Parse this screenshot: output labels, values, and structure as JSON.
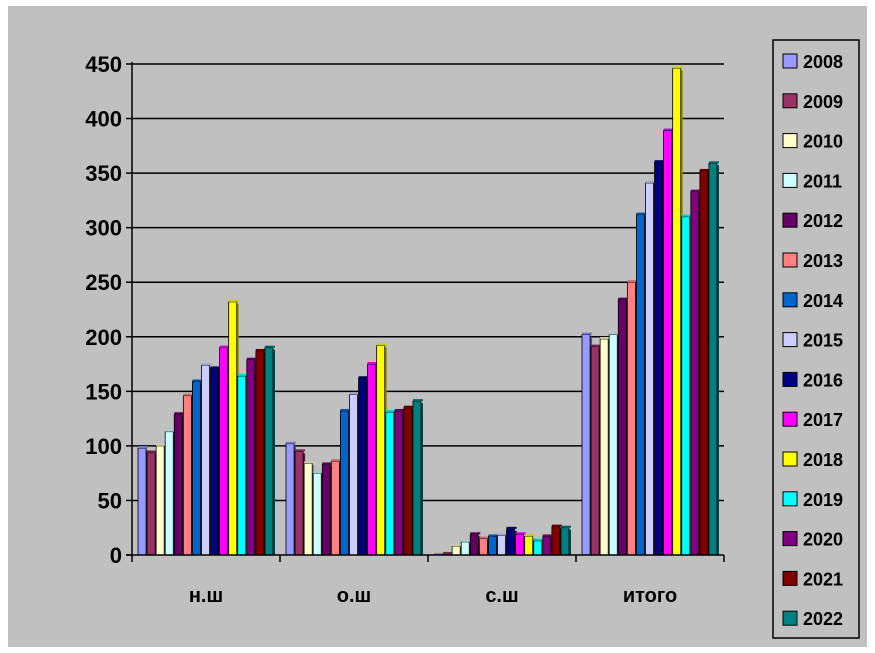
{
  "chart_data": {
    "type": "bar",
    "categories": [
      "н.ш",
      "о.ш",
      "с.ш",
      "итого"
    ],
    "series": [
      {
        "name": "2008",
        "color": "#9999ff",
        "values": [
          98,
          102,
          0,
          202
        ]
      },
      {
        "name": "2009",
        "color": "#993366",
        "values": [
          94,
          95,
          1,
          191
        ]
      },
      {
        "name": "2010",
        "color": "#ffffcc",
        "values": [
          100,
          84,
          8,
          198
        ]
      },
      {
        "name": "2011",
        "color": "#ccffff",
        "values": [
          113,
          75,
          12,
          202
        ]
      },
      {
        "name": "2012",
        "color": "#660066",
        "values": [
          129,
          83,
          19,
          234
        ]
      },
      {
        "name": "2013",
        "color": "#ff8080",
        "values": [
          146,
          86,
          15,
          250
        ]
      },
      {
        "name": "2014",
        "color": "#0066cc",
        "values": [
          159,
          132,
          17,
          312
        ]
      },
      {
        "name": "2015",
        "color": "#ccccff",
        "values": [
          174,
          147,
          18,
          341
        ]
      },
      {
        "name": "2016",
        "color": "#000080",
        "values": [
          171,
          162,
          24,
          360
        ]
      },
      {
        "name": "2017",
        "color": "#ff00ff",
        "values": [
          190,
          175,
          19,
          389
        ]
      },
      {
        "name": "2018",
        "color": "#ffff00",
        "values": [
          232,
          192,
          17,
          446
        ]
      },
      {
        "name": "2019",
        "color": "#00ffff",
        "values": [
          164,
          131,
          13,
          310
        ]
      },
      {
        "name": "2020",
        "color": "#800080",
        "values": [
          179,
          132,
          17,
          333
        ]
      },
      {
        "name": "2021",
        "color": "#800000",
        "values": [
          187,
          135,
          26,
          352
        ]
      },
      {
        "name": "2022",
        "color": "#008080",
        "values": [
          190,
          141,
          25,
          359
        ]
      }
    ],
    "ylim": [
      0,
      450
    ],
    "yticks": [
      0,
      50,
      100,
      150,
      200,
      250,
      300,
      350,
      400,
      450
    ],
    "grid": true,
    "legend_position": "right",
    "plot_background": "#c0c0c0",
    "xlabel": "",
    "ylabel": "",
    "title": ""
  }
}
